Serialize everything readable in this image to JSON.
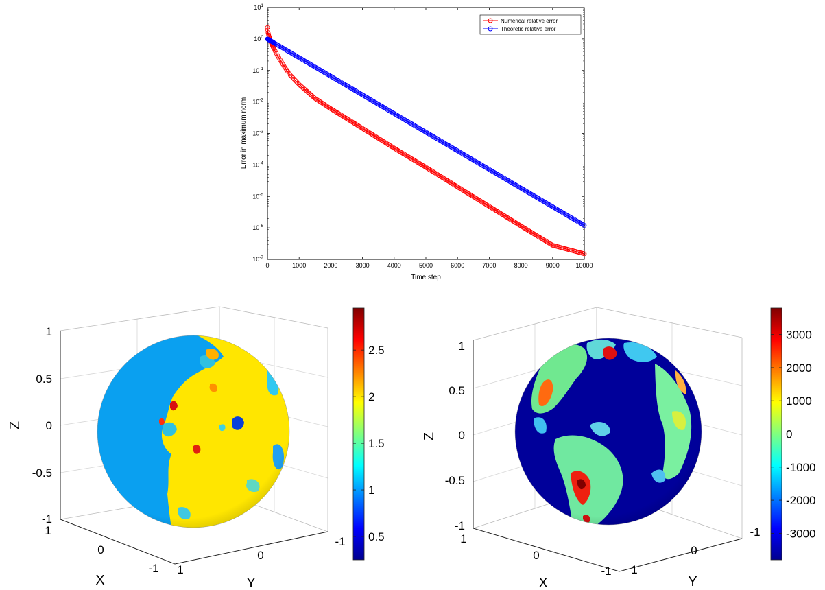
{
  "chart_data": [
    {
      "type": "line",
      "xlabel": "Time step",
      "ylabel": "Error in maximum norm",
      "xlim": [
        0,
        10000
      ],
      "ylim": [
        1e-07,
        10
      ],
      "yscale": "log",
      "xticks": [
        "0",
        "1000",
        "2000",
        "3000",
        "4000",
        "5000",
        "6000",
        "7000",
        "8000",
        "9000",
        "10000"
      ],
      "yticks": [
        {
          "base": "10",
          "exp": "1"
        },
        {
          "base": "10",
          "exp": "0"
        },
        {
          "base": "10",
          "exp": "-1"
        },
        {
          "base": "10",
          "exp": "-2"
        },
        {
          "base": "10",
          "exp": "-3"
        },
        {
          "base": "10",
          "exp": "-4"
        },
        {
          "base": "10",
          "exp": "-5"
        },
        {
          "base": "10",
          "exp": "-6"
        },
        {
          "base": "10",
          "exp": "-7"
        }
      ],
      "legend_position": "top-right",
      "grid": false,
      "series": [
        {
          "name": "Numerical relative error",
          "color": "#ff0000",
          "marker": "circle",
          "x": [
            0,
            20,
            50,
            100,
            200,
            300,
            500,
            700,
            1000,
            1500,
            2000,
            3000,
            4000,
            5000,
            6000,
            7000,
            8000,
            9000,
            10000
          ],
          "y": [
            2.3,
            1.6,
            1.2,
            0.85,
            0.5,
            0.32,
            0.15,
            0.075,
            0.036,
            0.013,
            0.0061,
            0.00145,
            0.00034,
            8.4e-05,
            2e-05,
            4.8e-06,
            1.15e-06,
            2.8e-07,
            1.5e-07
          ]
        },
        {
          "name": "Theoretic relative error",
          "color": "#0000ff",
          "marker": "circle",
          "x": [
            0,
            10000
          ],
          "y": [
            1.0,
            1.2e-06
          ]
        }
      ]
    },
    {
      "type": "heatmap",
      "subtype": "sphere-surface",
      "xlabel": "X",
      "ylabel": "Y",
      "zlabel": "Z",
      "zticks": [
        "1",
        "0.5",
        "0",
        "-0.5",
        "-1"
      ],
      "xticks": [
        "1",
        "0",
        "-1"
      ],
      "yticks": [
        "1",
        "0",
        "-1"
      ],
      "colormap": "jet",
      "colorbar_range": [
        0.25,
        2.95
      ],
      "colorbar_ticks": [
        "0.5",
        "1",
        "1.5",
        "2",
        "2.5"
      ]
    },
    {
      "type": "heatmap",
      "subtype": "sphere-surface",
      "xlabel": "X",
      "ylabel": "Y",
      "zlabel": "Z",
      "zticks": [
        "1",
        "0.5",
        "0",
        "-0.5",
        "-1"
      ],
      "xticks": [
        "1",
        "0",
        "-1"
      ],
      "yticks": [
        "1",
        "0",
        "-1"
      ],
      "colormap": "jet",
      "colorbar_range": [
        -3800,
        3800
      ],
      "colorbar_ticks": [
        "3000",
        "2000",
        "1000",
        "0",
        "-1000",
        "-2000",
        "-3000"
      ]
    }
  ]
}
